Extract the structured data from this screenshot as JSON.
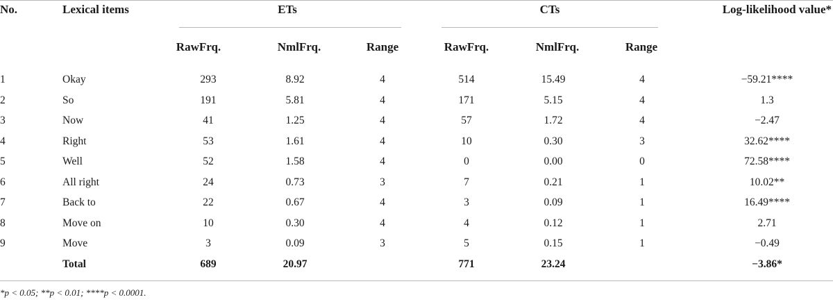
{
  "table": {
    "headers": {
      "no": "No.",
      "lexical": "Lexical items",
      "ets": "ETs",
      "cts": "CTs",
      "loglik": "Log-likelihood value*",
      "sub": [
        "RawFrq.",
        "NmlFrq.",
        "Range",
        "RawFrq.",
        "NmlFrq.",
        "Range"
      ]
    },
    "rows": [
      [
        "1",
        "Okay",
        "293",
        "8.92",
        "4",
        "514",
        "15.49",
        "4",
        "−59.21****"
      ],
      [
        "2",
        "So",
        "191",
        "5.81",
        "4",
        "171",
        "5.15",
        "4",
        "1.3"
      ],
      [
        "3",
        "Now",
        "41",
        "1.25",
        "4",
        "57",
        "1.72",
        "4",
        "−2.47"
      ],
      [
        "4",
        "Right",
        "53",
        "1.61",
        "4",
        "10",
        "0.30",
        "3",
        "32.62****"
      ],
      [
        "5",
        "Well",
        "52",
        "1.58",
        "4",
        "0",
        "0.00",
        "0",
        "72.58****"
      ],
      [
        "6",
        "All right",
        "24",
        "0.73",
        "3",
        "7",
        "0.21",
        "1",
        "10.02**"
      ],
      [
        "7",
        "Back to",
        "22",
        "0.67",
        "4",
        "3",
        "0.09",
        "1",
        "16.49****"
      ],
      [
        "8",
        "Move on",
        "10",
        "0.30",
        "4",
        "4",
        "0.12",
        "1",
        "2.71"
      ],
      [
        "9",
        "Move",
        "3",
        "0.09",
        "3",
        "5",
        "0.15",
        "1",
        "−0.49"
      ]
    ],
    "total": [
      "",
      "Total",
      "689",
      "20.97",
      "",
      "771",
      "23.24",
      "",
      "−3.86*"
    ]
  },
  "footnote": "*p < 0.05; **p < 0.01; ****p < 0.0001."
}
